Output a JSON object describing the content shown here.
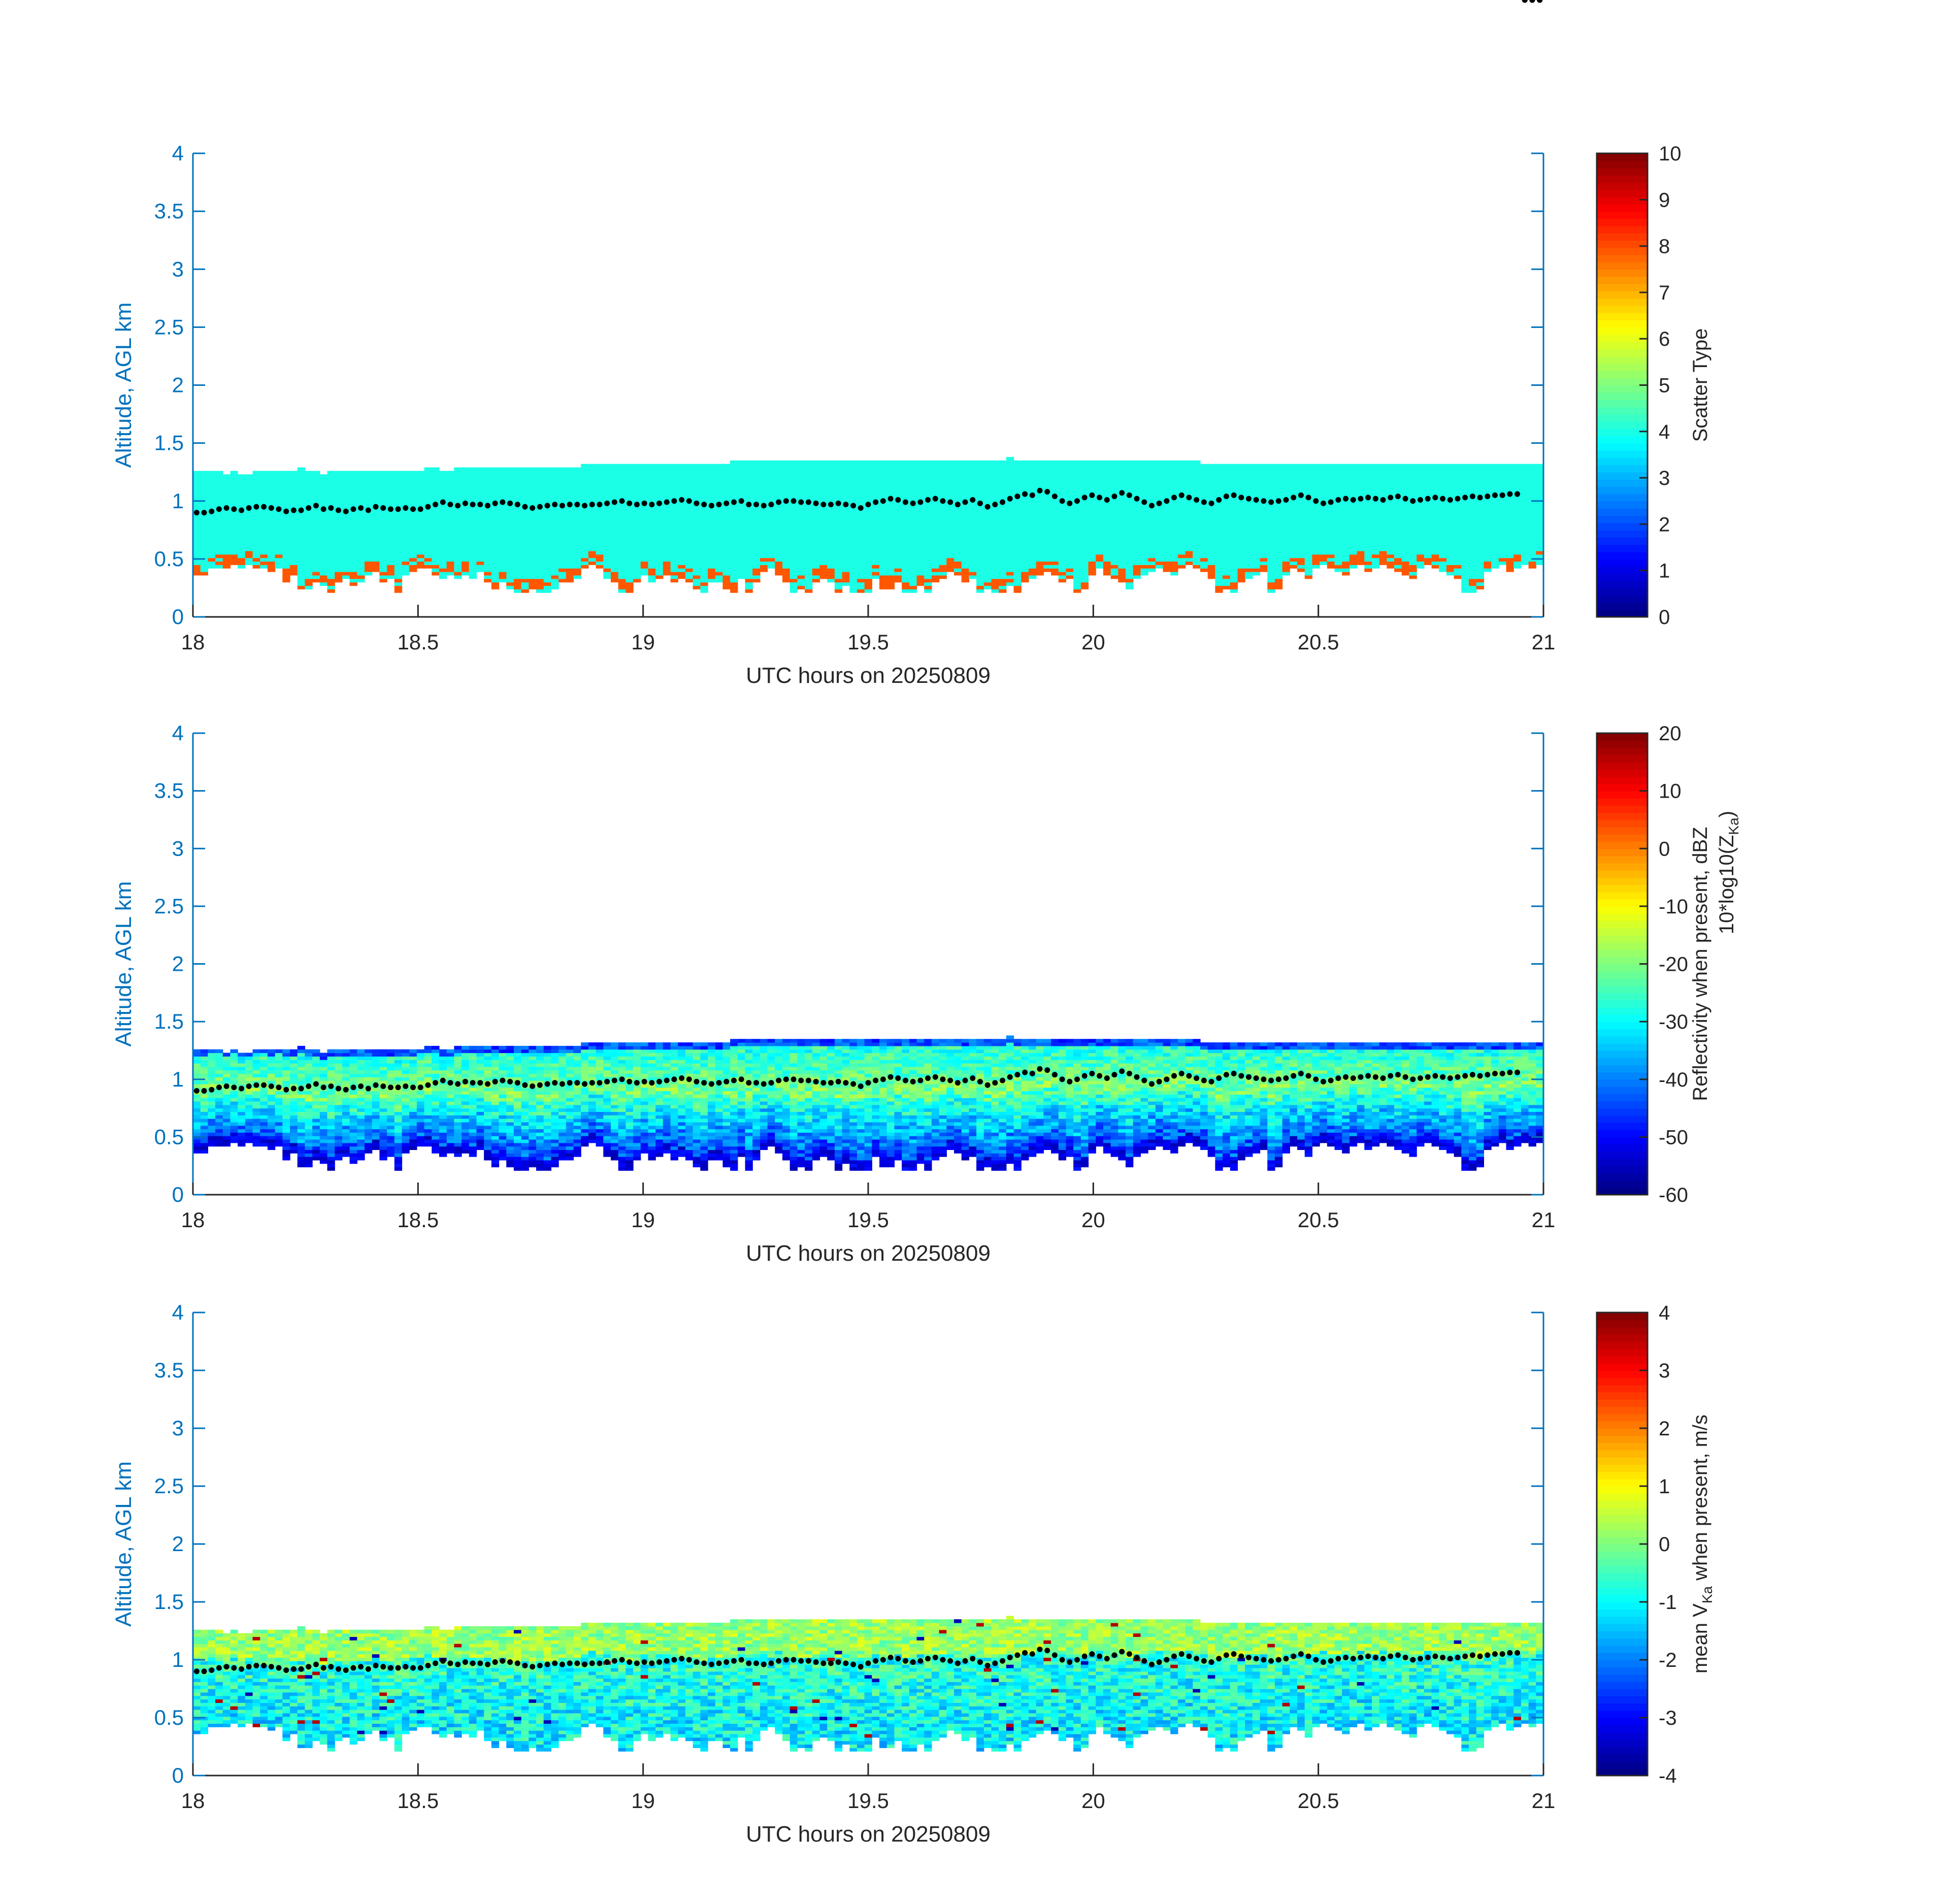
{
  "chart_data": [
    {
      "type": "heatmap",
      "name": "scatter-type",
      "xlabel": "UTC hours on 20250809",
      "ylabel": "Altitude, AGL km",
      "xlim": [
        18,
        21
      ],
      "ylim": [
        0,
        4
      ],
      "xticks": [
        18,
        18.5,
        19,
        19.5,
        20,
        20.5,
        21
      ],
      "xtick_labels": [
        "18",
        "18.5",
        "19",
        "19.5",
        "20",
        "20.5",
        "21"
      ],
      "yticks": [
        0,
        0.5,
        1,
        1.5,
        2,
        2.5,
        3,
        3.5,
        4
      ],
      "ytick_labels": [
        "0",
        "0.5",
        "1",
        "1.5",
        "2",
        "2.5",
        "3",
        "3.5",
        "4"
      ],
      "colorbar": {
        "label": "Scatter Type",
        "colormap": "jet",
        "range": [
          0,
          10
        ],
        "ticks": [
          0,
          1,
          2,
          3,
          4,
          5,
          6,
          7,
          8,
          9,
          10
        ],
        "tick_labels": [
          "0",
          "1",
          "2",
          "3",
          "4",
          "5",
          "6",
          "7",
          "8",
          "9",
          "10"
        ]
      },
      "field": "scatter",
      "dominant_value": 4,
      "low_echo_value": 7.9
    },
    {
      "type": "heatmap",
      "name": "reflectivity",
      "xlabel": "UTC hours on 20250809",
      "ylabel": "Altitude, AGL km",
      "xlim": [
        18,
        21
      ],
      "ylim": [
        0,
        4
      ],
      "xticks": [
        18,
        18.5,
        19,
        19.5,
        20,
        20.5,
        21
      ],
      "xtick_labels": [
        "18",
        "18.5",
        "19",
        "19.5",
        "20",
        "20.5",
        "21"
      ],
      "yticks": [
        0,
        0.5,
        1,
        1.5,
        2,
        2.5,
        3,
        3.5,
        4
      ],
      "ytick_labels": [
        "0",
        "0.5",
        "1",
        "1.5",
        "2",
        "2.5",
        "3",
        "3.5",
        "4"
      ],
      "colorbar": {
        "label_line1": "Reflectivity when present, dBZ",
        "label_line2_main": "10*log10(Z",
        "label_line2_sub": "Ka",
        "label_line2_end": ")",
        "colormap": "jet",
        "range": [
          -60,
          20
        ],
        "ticks": [
          -60,
          -50,
          -40,
          -30,
          -20,
          -10,
          0,
          10,
          20
        ],
        "tick_labels": [
          "-60",
          "-50",
          "-40",
          "-30",
          "-20",
          "-10",
          "0",
          "10",
          "20"
        ]
      },
      "field": "reflectivity"
    },
    {
      "type": "heatmap",
      "name": "mean-velocity",
      "xlabel": "UTC hours on 20250809",
      "ylabel": "Altitude, AGL km",
      "xlim": [
        18,
        21
      ],
      "ylim": [
        0,
        4
      ],
      "xticks": [
        18,
        18.5,
        19,
        19.5,
        20,
        20.5,
        21
      ],
      "xtick_labels": [
        "18",
        "18.5",
        "19",
        "19.5",
        "20",
        "20.5",
        "21"
      ],
      "yticks": [
        0,
        0.5,
        1,
        1.5,
        2,
        2.5,
        3,
        3.5,
        4
      ],
      "ytick_labels": [
        "0",
        "0.5",
        "1",
        "1.5",
        "2",
        "2.5",
        "3",
        "3.5",
        "4"
      ],
      "colorbar": {
        "label_main": "mean V",
        "label_sub": "Ka",
        "label_end": " when present, m/s",
        "colormap": "jet",
        "range": [
          -4,
          4
        ],
        "ticks": [
          -4,
          -3,
          -2,
          -1,
          0,
          1,
          2,
          3,
          4
        ],
        "tick_labels": [
          "-4",
          "-3",
          "-2",
          "-1",
          "0",
          "1",
          "2",
          "3",
          "4"
        ]
      },
      "field": "velocity"
    }
  ],
  "shared_profile": {
    "time_start": 18,
    "time_end": 21,
    "bins_per_hour": 60,
    "range_gate_km": 0.03,
    "cloud_top_km": [
      1.26,
      1.26,
      1.26,
      1.26,
      1.23,
      1.26,
      1.23,
      1.23,
      1.26,
      1.26,
      1.26,
      1.26,
      1.26,
      1.26,
      1.29,
      1.26,
      1.26,
      1.23,
      1.26,
      1.26,
      1.26,
      1.26,
      1.26,
      1.26,
      1.26,
      1.26,
      1.26,
      1.26,
      1.26,
      1.26,
      1.26,
      1.29,
      1.29,
      1.26,
      1.26,
      1.29,
      1.29,
      1.29,
      1.29,
      1.29,
      1.29,
      1.29,
      1.29,
      1.29,
      1.29,
      1.29,
      1.29,
      1.29,
      1.29,
      1.29,
      1.29,
      1.29,
      1.32,
      1.32,
      1.32,
      1.32,
      1.32,
      1.32,
      1.32,
      1.32,
      1.32,
      1.32,
      1.32,
      1.32,
      1.32,
      1.32,
      1.32,
      1.32,
      1.32,
      1.32,
      1.32,
      1.32,
      1.35,
      1.35,
      1.35,
      1.35,
      1.35,
      1.35,
      1.35,
      1.35,
      1.35,
      1.35,
      1.35,
      1.35,
      1.35,
      1.35,
      1.35,
      1.35,
      1.35,
      1.35,
      1.35,
      1.35,
      1.35,
      1.35,
      1.35,
      1.35,
      1.35,
      1.35,
      1.35,
      1.35,
      1.35,
      1.35,
      1.35,
      1.35,
      1.35,
      1.35,
      1.35,
      1.35,
      1.35,
      1.38,
      1.35,
      1.35,
      1.35,
      1.35,
      1.35,
      1.35,
      1.35,
      1.35,
      1.35,
      1.35,
      1.35,
      1.35,
      1.35,
      1.35,
      1.35,
      1.35,
      1.35,
      1.35,
      1.35,
      1.35,
      1.35,
      1.35,
      1.35,
      1.35,
      1.35,
      1.32,
      1.32,
      1.32,
      1.32,
      1.32,
      1.32,
      1.32,
      1.32,
      1.32,
      1.32,
      1.32,
      1.32,
      1.32,
      1.32,
      1.32,
      1.32,
      1.32,
      1.32,
      1.32,
      1.32,
      1.32,
      1.32,
      1.32,
      1.32,
      1.32,
      1.32,
      1.32,
      1.32,
      1.32,
      1.32,
      1.32,
      1.32,
      1.32,
      1.32,
      1.32,
      1.32,
      1.32,
      1.32,
      1.32,
      1.32,
      1.32,
      1.32,
      1.32,
      1.32,
      1.32,
      1.32
    ],
    "cloud_base_km": [
      0.36,
      0.36,
      0.42,
      0.42,
      0.42,
      0.45,
      0.42,
      0.45,
      0.42,
      0.42,
      0.39,
      0.42,
      0.3,
      0.36,
      0.24,
      0.24,
      0.3,
      0.27,
      0.21,
      0.3,
      0.33,
      0.27,
      0.3,
      0.36,
      0.39,
      0.3,
      0.33,
      0.21,
      0.36,
      0.39,
      0.42,
      0.42,
      0.36,
      0.33,
      0.36,
      0.33,
      0.36,
      0.33,
      0.39,
      0.3,
      0.24,
      0.3,
      0.24,
      0.21,
      0.21,
      0.24,
      0.21,
      0.21,
      0.24,
      0.3,
      0.3,
      0.33,
      0.42,
      0.45,
      0.42,
      0.33,
      0.3,
      0.21,
      0.21,
      0.3,
      0.36,
      0.3,
      0.33,
      0.36,
      0.3,
      0.33,
      0.3,
      0.24,
      0.21,
      0.3,
      0.3,
      0.24,
      0.21,
      0.33,
      0.21,
      0.3,
      0.39,
      0.42,
      0.36,
      0.3,
      0.21,
      0.24,
      0.21,
      0.3,
      0.33,
      0.3,
      0.21,
      0.27,
      0.21,
      0.21,
      0.21,
      0.33,
      0.24,
      0.24,
      0.3,
      0.21,
      0.21,
      0.27,
      0.21,
      0.3,
      0.33,
      0.39,
      0.36,
      0.3,
      0.33,
      0.21,
      0.24,
      0.21,
      0.21,
      0.27,
      0.21,
      0.3,
      0.33,
      0.36,
      0.39,
      0.36,
      0.3,
      0.33,
      0.21,
      0.24,
      0.36,
      0.42,
      0.36,
      0.33,
      0.3,
      0.24,
      0.33,
      0.36,
      0.39,
      0.42,
      0.39,
      0.36,
      0.42,
      0.45,
      0.42,
      0.39,
      0.33,
      0.21,
      0.24,
      0.21,
      0.3,
      0.33,
      0.36,
      0.39,
      0.21,
      0.24,
      0.36,
      0.42,
      0.39,
      0.33,
      0.42,
      0.45,
      0.42,
      0.39,
      0.36,
      0.42,
      0.45,
      0.39,
      0.42,
      0.45,
      0.42,
      0.39,
      0.36,
      0.33,
      0.42,
      0.45,
      0.42,
      0.39,
      0.36,
      0.33,
      0.21,
      0.21,
      0.24,
      0.39,
      0.42,
      0.45,
      0.39,
      0.42,
      0.45,
      0.42,
      0.45,
      0.42
    ],
    "mld_km": [
      0.9,
      0.9,
      0.91,
      0.93,
      0.94,
      0.93,
      0.92,
      0.94,
      0.95,
      0.95,
      0.94,
      0.93,
      0.91,
      0.92,
      0.92,
      0.94,
      0.96,
      0.93,
      0.94,
      0.92,
      0.91,
      0.93,
      0.94,
      0.92,
      0.95,
      0.94,
      0.93,
      0.93,
      0.94,
      0.93,
      0.93,
      0.95,
      0.97,
      0.99,
      0.97,
      0.96,
      0.98,
      0.97,
      0.97,
      0.96,
      0.98,
      0.99,
      0.98,
      0.97,
      0.95,
      0.94,
      0.95,
      0.96,
      0.97,
      0.96,
      0.97,
      0.97,
      0.96,
      0.97,
      0.97,
      0.98,
      0.99,
      1.0,
      0.98,
      0.97,
      0.98,
      0.97,
      0.98,
      0.99,
      1.0,
      1.01,
      1.0,
      0.98,
      0.97,
      0.96,
      0.97,
      0.98,
      0.99,
      1.0,
      0.97,
      0.97,
      0.96,
      0.97,
      0.99,
      1.0,
      1.0,
      0.99,
      0.99,
      0.98,
      0.97,
      0.97,
      0.98,
      0.97,
      0.96,
      0.94,
      0.97,
      0.99,
      1.0,
      1.02,
      1.01,
      0.99,
      0.98,
      0.99,
      1.01,
      1.02,
      1.0,
      0.99,
      0.97,
      0.99,
      1.01,
      0.98,
      0.95,
      0.97,
      0.99,
      1.02,
      1.04,
      1.06,
      1.05,
      1.09,
      1.08,
      1.04,
      1.0,
      0.98,
      1.0,
      1.03,
      1.05,
      1.03,
      1.01,
      1.04,
      1.07,
      1.05,
      1.02,
      0.99,
      0.96,
      0.98,
      1.0,
      1.03,
      1.05,
      1.03,
      1.01,
      0.99,
      0.98,
      1.01,
      1.04,
      1.05,
      1.03,
      1.02,
      1.01,
      1.0,
      0.99,
      1.0,
      1.01,
      1.03,
      1.05,
      1.03,
      1.0,
      0.98,
      0.99,
      1.01,
      1.02,
      1.01,
      1.02,
      1.03,
      1.02,
      1.01,
      1.03,
      1.04,
      1.02,
      1.0,
      1.01,
      1.02,
      1.03,
      1.02,
      1.01,
      1.02,
      1.03,
      1.04,
      1.03,
      1.04,
      1.05,
      1.05,
      1.06,
      1.06
    ]
  }
}
